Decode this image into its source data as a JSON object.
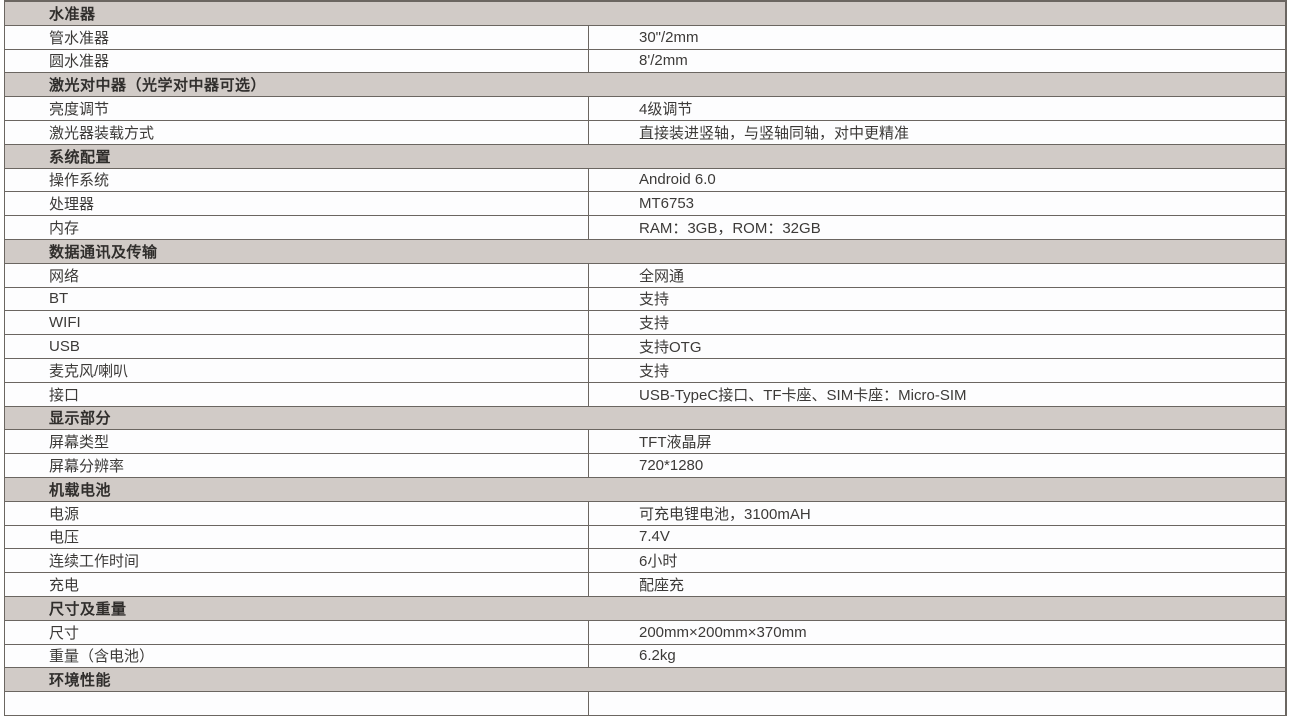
{
  "table": {
    "colors": {
      "header_bg": "#d1cbc7",
      "border": "#6b6661",
      "text": "#3c3a38",
      "row_bg": "#fdfdfe"
    },
    "sections": [
      {
        "title": "水准器",
        "items": [
          {
            "label": "管水准器",
            "value": "30\"/2mm"
          },
          {
            "label": "圆水准器",
            "value": "8'/2mm"
          }
        ]
      },
      {
        "title": "激光对中器（光学对中器可选）",
        "items": [
          {
            "label": "亮度调节",
            "value": "4级调节"
          },
          {
            "label": "激光器装载方式",
            "value": "直接装进竖轴，与竖轴同轴，对中更精准"
          }
        ]
      },
      {
        "title": "系统配置",
        "items": [
          {
            "label": "操作系统",
            "value": "Android 6.0"
          },
          {
            "label": "处理器",
            "value": "MT6753"
          },
          {
            "label": "内存",
            "value": "RAM：3GB，ROM：32GB"
          }
        ]
      },
      {
        "title": "数据通讯及传输",
        "items": [
          {
            "label": "网络",
            "value": "全网通"
          },
          {
            "label": "BT",
            "value": "支持"
          },
          {
            "label": "WIFI",
            "value": "支持"
          },
          {
            "label": "USB",
            "value": "支持OTG"
          },
          {
            "label": "麦克风/喇叭",
            "value": "支持"
          },
          {
            "label": "接口",
            "value": "USB-TypeC接口、TF卡座、SIM卡座：Micro-SIM"
          }
        ]
      },
      {
        "title": "显示部分",
        "items": [
          {
            "label": "屏幕类型",
            "value": "TFT液晶屏"
          },
          {
            "label": "屏幕分辨率",
            "value": "720*1280"
          }
        ]
      },
      {
        "title": "机载电池",
        "items": [
          {
            "label": "电源",
            "value": "可充电锂电池，3100mAH"
          },
          {
            "label": "电压",
            "value": "7.4V"
          },
          {
            "label": "连续工作时间",
            "value": "6小时"
          },
          {
            "label": "充电",
            "value": "配座充"
          }
        ]
      },
      {
        "title": "尺寸及重量",
        "items": [
          {
            "label": "尺寸",
            "value": "200mm×200mm×370mm"
          },
          {
            "label": "重量（含电池）",
            "value": "6.2kg"
          }
        ]
      },
      {
        "title": "环境性能",
        "items": [
          {
            "label": "",
            "value": ""
          }
        ]
      }
    ]
  }
}
